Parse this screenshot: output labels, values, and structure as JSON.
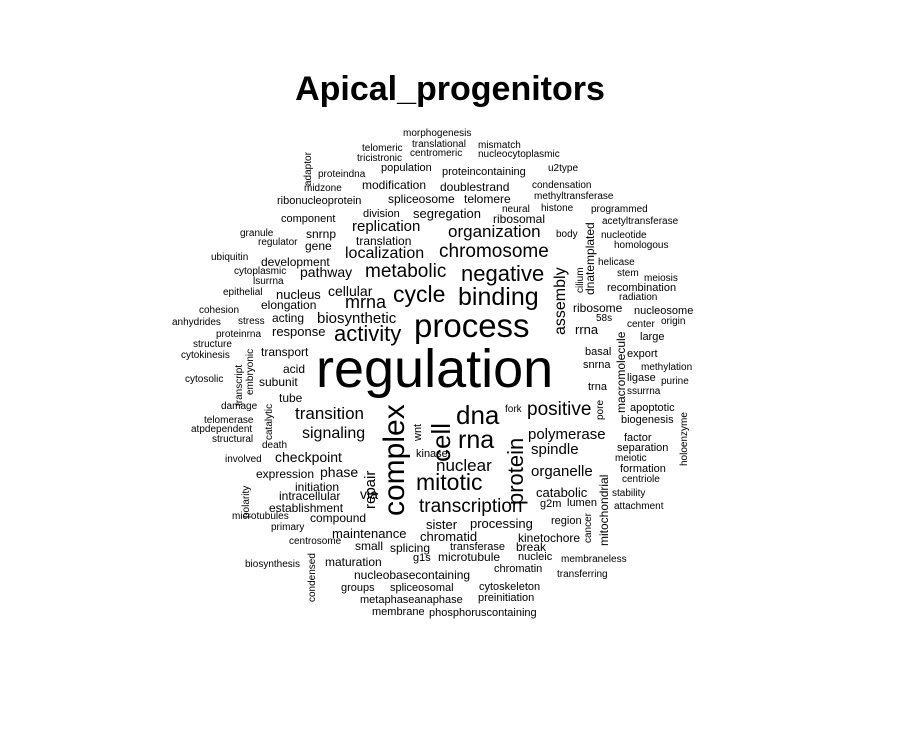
{
  "title": "Apical_progenitors",
  "words": [
    {
      "text": "regulation"
    },
    {
      "text": "process"
    },
    {
      "text": "complex"
    },
    {
      "text": "binding"
    },
    {
      "text": "activity"
    },
    {
      "text": "cell"
    },
    {
      "text": "cycle"
    },
    {
      "text": "dna"
    },
    {
      "text": "rna"
    },
    {
      "text": "mitotic"
    },
    {
      "text": "negative"
    },
    {
      "text": "protein"
    },
    {
      "text": "transcription"
    },
    {
      "text": "chromosome"
    },
    {
      "text": "metabolic"
    },
    {
      "text": "positive"
    },
    {
      "text": "mrna"
    },
    {
      "text": "organization"
    },
    {
      "text": "nuclear"
    },
    {
      "text": "transition"
    },
    {
      "text": "signaling"
    },
    {
      "text": "polymerase"
    },
    {
      "text": "localization"
    },
    {
      "text": "replication"
    },
    {
      "text": "assembly"
    },
    {
      "text": "spindle"
    },
    {
      "text": "organelle"
    },
    {
      "text": "biosynthetic"
    },
    {
      "text": "cellular"
    },
    {
      "text": "pathway"
    },
    {
      "text": "checkpoint"
    },
    {
      "text": "repair"
    },
    {
      "text": "phase"
    },
    {
      "text": "response"
    },
    {
      "text": "nucleus"
    },
    {
      "text": "via"
    },
    {
      "text": "mitochondrial"
    },
    {
      "text": "macromolecule"
    },
    {
      "text": "dnatemplated"
    },
    {
      "text": "maintenance"
    },
    {
      "text": "processing"
    },
    {
      "text": "chromatid"
    },
    {
      "text": "sister"
    },
    {
      "text": "catabolic"
    },
    {
      "text": "translation"
    },
    {
      "text": "ribosomal"
    },
    {
      "text": "segregation"
    },
    {
      "text": "ribosome"
    },
    {
      "text": "rrna"
    },
    {
      "text": "development"
    },
    {
      "text": "transport"
    },
    {
      "text": "acid"
    },
    {
      "text": "subunit"
    },
    {
      "text": "tube"
    },
    {
      "text": "elongation"
    },
    {
      "text": "acting"
    },
    {
      "text": "snrnp"
    },
    {
      "text": "gene"
    },
    {
      "text": "kinetochore"
    },
    {
      "text": "break"
    },
    {
      "text": "chromatin"
    },
    {
      "text": "nucleic"
    },
    {
      "text": "microtubule"
    },
    {
      "text": "g1s"
    },
    {
      "text": "splicing"
    },
    {
      "text": "small"
    },
    {
      "text": "compound"
    },
    {
      "text": "intracellular"
    },
    {
      "text": "establishment"
    },
    {
      "text": "initiation"
    },
    {
      "text": "expression"
    },
    {
      "text": "maturation"
    },
    {
      "text": "nucleobasecontaining"
    },
    {
      "text": "spliceosomal"
    },
    {
      "text": "cytoskeleton"
    },
    {
      "text": "metaphaseanaphase"
    },
    {
      "text": "preinitiation"
    },
    {
      "text": "membrane"
    },
    {
      "text": "phosphoruscontaining"
    },
    {
      "text": "groups"
    },
    {
      "text": "transferase"
    },
    {
      "text": "region"
    },
    {
      "text": "g2m"
    },
    {
      "text": "lumen"
    },
    {
      "text": "separation"
    },
    {
      "text": "kinase"
    },
    {
      "text": "wnt"
    },
    {
      "text": "fork"
    },
    {
      "text": "apoptotic"
    },
    {
      "text": "biogenesis"
    },
    {
      "text": "factor"
    },
    {
      "text": "formation"
    },
    {
      "text": "meiotic"
    },
    {
      "text": "centriole"
    },
    {
      "text": "stability"
    },
    {
      "text": "attachment"
    },
    {
      "text": "membraneless"
    },
    {
      "text": "transferring"
    },
    {
      "text": "cancer"
    },
    {
      "text": "holoenzyme"
    },
    {
      "text": "pore"
    },
    {
      "text": "ligase"
    },
    {
      "text": "ssurrna"
    },
    {
      "text": "purine"
    },
    {
      "text": "methylation"
    },
    {
      "text": "trna"
    },
    {
      "text": "export"
    },
    {
      "text": "snrna"
    },
    {
      "text": "basal"
    },
    {
      "text": "large"
    },
    {
      "text": "center"
    },
    {
      "text": "origin"
    },
    {
      "text": "nucleosome"
    },
    {
      "text": "58s"
    },
    {
      "text": "radiation"
    },
    {
      "text": "recombination"
    },
    {
      "text": "meiosis"
    },
    {
      "text": "stem"
    },
    {
      "text": "helicase"
    },
    {
      "text": "cilium"
    },
    {
      "text": "homologous"
    },
    {
      "text": "nucleotide"
    },
    {
      "text": "acetyltransferase"
    },
    {
      "text": "programmed"
    },
    {
      "text": "histone"
    },
    {
      "text": "neural"
    },
    {
      "text": "body"
    },
    {
      "text": "methyltransferase"
    },
    {
      "text": "condensation"
    },
    {
      "text": "u2type"
    },
    {
      "text": "nucleocytoplasmic"
    },
    {
      "text": "proteincontaining"
    },
    {
      "text": "doublestrand"
    },
    {
      "text": "telomere"
    },
    {
      "text": "spliceosome"
    },
    {
      "text": "modification"
    },
    {
      "text": "population"
    },
    {
      "text": "centromeric"
    },
    {
      "text": "mismatch"
    },
    {
      "text": "translational"
    },
    {
      "text": "tricistronic"
    },
    {
      "text": "telomeric"
    },
    {
      "text": "morphogenesis"
    },
    {
      "text": "proteindna"
    },
    {
      "text": "adaptor"
    },
    {
      "text": "midzone"
    },
    {
      "text": "ribonucleoprotein"
    },
    {
      "text": "division"
    },
    {
      "text": "component"
    },
    {
      "text": "granule"
    },
    {
      "text": "regulator"
    },
    {
      "text": "ubiquitin"
    },
    {
      "text": "cytoplasmic"
    },
    {
      "text": "lsurrna"
    },
    {
      "text": "epithelial"
    },
    {
      "text": "cohesion"
    },
    {
      "text": "stress"
    },
    {
      "text": "anhydrides"
    },
    {
      "text": "proteinrna"
    },
    {
      "text": "structure"
    },
    {
      "text": "cytokinesis"
    },
    {
      "text": "cytosolic"
    },
    {
      "text": "transcript"
    },
    {
      "text": "embryonic"
    },
    {
      "text": "catalytic"
    },
    {
      "text": "damage"
    },
    {
      "text": "telomerase"
    },
    {
      "text": "atpdependent"
    },
    {
      "text": "structural"
    },
    {
      "text": "death"
    },
    {
      "text": "involved"
    },
    {
      "text": "polarity"
    },
    {
      "text": "microtubules"
    },
    {
      "text": "primary"
    },
    {
      "text": "centrosome"
    },
    {
      "text": "biosynthesis"
    },
    {
      "text": "condensed"
    }
  ]
}
